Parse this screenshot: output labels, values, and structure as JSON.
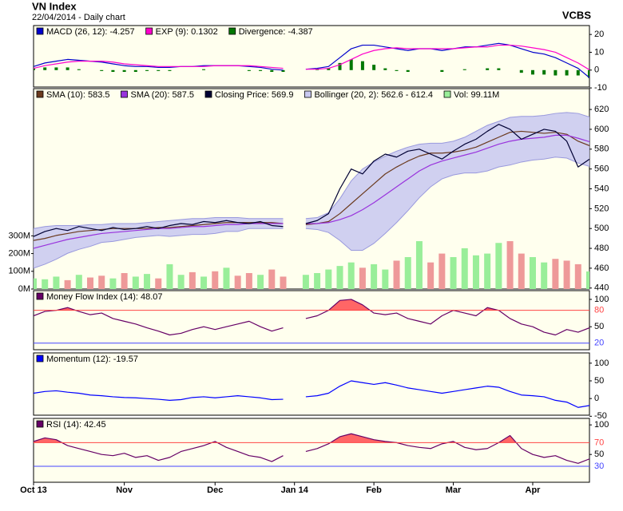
{
  "header": {
    "title": "VN Index",
    "subtitle": "22/04/2014 - Daily chart",
    "source": "VCBS"
  },
  "chart_data": [
    {
      "type": "line",
      "background": "#ffffee",
      "ylim": [
        -9.5,
        25
      ],
      "yticks": [
        -10,
        0,
        10,
        20
      ],
      "series": [
        {
          "name": "MACD (26, 12): -4.257",
          "color": "#0000cc",
          "values": [
            2,
            4,
            5,
            6,
            5.5,
            5,
            4.5,
            3.5,
            2.5,
            2,
            2,
            1.5,
            1.5,
            2,
            2,
            2.5,
            2.5,
            2.5,
            2.5,
            2,
            1.5,
            0.5,
            0,
            null,
            0.5,
            1,
            2,
            7,
            12,
            14,
            14,
            13,
            12,
            11,
            12,
            12,
            11,
            12,
            13,
            13,
            14,
            15,
            14,
            12,
            10,
            9,
            7,
            4,
            1,
            -4.257
          ]
        },
        {
          "name": "EXP (9): 0.1302",
          "color": "#ff00cc",
          "values": [
            1,
            2.5,
            3.5,
            4.5,
            5,
            5,
            5,
            4.5,
            3.5,
            3,
            2.5,
            2,
            2,
            2,
            2,
            2,
            2.5,
            2.5,
            2.5,
            2.5,
            2,
            1.5,
            1,
            null,
            0.5,
            0.5,
            1,
            3,
            6,
            9,
            11,
            12,
            12.5,
            12,
            12,
            12,
            12,
            12,
            12.5,
            13,
            13,
            14,
            14,
            13.5,
            12.5,
            11.5,
            10,
            7,
            4,
            0.1302
          ]
        },
        {
          "name": "Divergence: -4.387",
          "color": "#007700",
          "kind": "bar",
          "values": [
            1,
            1.5,
            1.5,
            1.5,
            0.5,
            0,
            -0.5,
            -1,
            -1,
            -1,
            -0.5,
            -0.5,
            -0.5,
            0,
            0,
            0.5,
            0,
            0,
            0,
            -0.5,
            -0.5,
            -1,
            -1,
            null,
            0,
            0.5,
            1,
            4,
            6,
            5,
            3,
            1,
            -0.5,
            -1,
            0,
            0,
            -1,
            0,
            0.5,
            0,
            1,
            1,
            0,
            -1.5,
            -2.5,
            -2.5,
            -3,
            -3,
            -3,
            -4.387
          ]
        }
      ]
    },
    {
      "type": "line",
      "background": "#ffffee",
      "ylim": [
        439,
        641
      ],
      "yticks": [
        440,
        460,
        480,
        500,
        520,
        540,
        560,
        580,
        600,
        620
      ],
      "y2lim": [
        0,
        1130
      ],
      "y2ticks": [
        {
          "value": 0,
          "label": "0M"
        },
        {
          "value": 100,
          "label": "100M"
        },
        {
          "value": 200,
          "label": "200M"
        },
        {
          "value": 300,
          "label": "300M"
        }
      ],
      "series": [
        {
          "name": "SMA (10): 583.5",
          "color": "#6b3a1e",
          "values": [
            488,
            490,
            493,
            495,
            497,
            498,
            499,
            500,
            500,
            500,
            500,
            501,
            501,
            502,
            503,
            504,
            505,
            506,
            506,
            506,
            506,
            506,
            505,
            null,
            504,
            505,
            507,
            515,
            525,
            535,
            545,
            555,
            562,
            568,
            573,
            576,
            576,
            577,
            579,
            582,
            587,
            592,
            597,
            598,
            597,
            596,
            597,
            595,
            588,
            583.5
          ]
        },
        {
          "name": "SMA (20): 587.5",
          "color": "#9933dd",
          "values": [
            480,
            483,
            486,
            489,
            491,
            493,
            495,
            496,
            497,
            498,
            499,
            500,
            500,
            501,
            502,
            502,
            503,
            504,
            504,
            505,
            505,
            505,
            505,
            null,
            505,
            505,
            506,
            509,
            513,
            519,
            526,
            534,
            542,
            550,
            558,
            564,
            568,
            571,
            574,
            577,
            581,
            585,
            588,
            590,
            591,
            592,
            594,
            594,
            591,
            587.5
          ]
        },
        {
          "name": "Closing Price: 569.9",
          "color": "#000033",
          "kind": "close",
          "values": [
            492,
            497,
            500,
            498,
            502,
            500,
            498,
            501,
            499,
            500,
            502,
            500,
            503,
            505,
            504,
            507,
            506,
            508,
            506,
            505,
            507,
            503,
            502,
            null,
            505,
            508,
            515,
            540,
            560,
            555,
            568,
            575,
            572,
            578,
            580,
            575,
            570,
            578,
            585,
            590,
            598,
            605,
            600,
            590,
            595,
            600,
            598,
            588,
            562,
            569.9
          ]
        },
        {
          "name": "Bollinger (20, 2): 562.6 - 612.4",
          "color": "#9999dd",
          "fill": "#c8c8f0",
          "kind": "band",
          "upper": [
            500,
            502,
            503,
            503,
            503,
            504,
            504,
            505,
            505,
            505,
            506,
            507,
            508,
            509,
            510,
            510,
            511,
            511,
            511,
            510,
            510,
            510,
            510,
            null,
            510,
            511,
            516,
            530,
            548,
            560,
            567,
            573,
            578,
            582,
            585,
            586,
            586,
            588,
            592,
            598,
            604,
            608,
            612,
            613,
            613,
            614,
            616,
            617,
            616,
            612.4
          ],
          "lower": [
            460,
            464,
            469,
            475,
            479,
            482,
            486,
            487,
            489,
            491,
            492,
            493,
            492,
            493,
            494,
            494,
            495,
            497,
            497,
            500,
            500,
            500,
            500,
            null,
            500,
            499,
            496,
            488,
            478,
            478,
            485,
            495,
            506,
            518,
            531,
            542,
            550,
            554,
            556,
            556,
            558,
            562,
            564,
            567,
            569,
            570,
            572,
            571,
            566,
            562.6
          ]
        },
        {
          "name": "Vol: 99.11M",
          "color": "#99ee99",
          "up_color": "#99ee99",
          "down_color": "#ee9999",
          "kind": "bar",
          "axis": "y2",
          "values": [
            60,
            55,
            70,
            50,
            80,
            65,
            75,
            60,
            90,
            70,
            85,
            60,
            140,
            80,
            95,
            70,
            100,
            120,
            75,
            90,
            80,
            110,
            70,
            null,
            80,
            90,
            110,
            130,
            150,
            120,
            140,
            110,
            160,
            180,
            270,
            150,
            200,
            180,
            230,
            190,
            200,
            260,
            270,
            200,
            180,
            150,
            170,
            160,
            140,
            99.11
          ]
        }
      ]
    },
    {
      "type": "line",
      "background": "#ffffee",
      "ylim": [
        8,
        116
      ],
      "yticks": [
        50,
        100
      ],
      "upper_level": 80,
      "upper_color": "#ff4444",
      "upper_fill": "#ff6666",
      "lower_level": 20,
      "lower_color": "#4444ff",
      "series": [
        {
          "name": "Money Flow Index (14): 48.07",
          "color": "#660066",
          "values": [
            70,
            78,
            80,
            85,
            78,
            72,
            75,
            65,
            60,
            55,
            48,
            42,
            35,
            38,
            45,
            50,
            45,
            50,
            55,
            60,
            50,
            42,
            48,
            null,
            65,
            70,
            80,
            98,
            100,
            90,
            75,
            72,
            75,
            65,
            60,
            55,
            70,
            80,
            75,
            70,
            85,
            80,
            65,
            55,
            50,
            40,
            35,
            45,
            40,
            48.07
          ]
        }
      ]
    },
    {
      "type": "line",
      "background": "#ffffee",
      "ylim": [
        -47,
        129
      ],
      "yticks": [
        -50,
        0,
        50,
        100
      ],
      "series": [
        {
          "name": "Momentum (12): -19.57",
          "color": "#0000ff",
          "values": [
            15,
            20,
            22,
            18,
            15,
            10,
            8,
            5,
            3,
            2,
            0,
            -2,
            -5,
            -3,
            3,
            5,
            2,
            5,
            8,
            5,
            2,
            -3,
            -2,
            null,
            5,
            8,
            15,
            35,
            50,
            45,
            40,
            45,
            38,
            30,
            25,
            20,
            15,
            20,
            25,
            30,
            35,
            32,
            20,
            10,
            8,
            5,
            -5,
            -10,
            -25,
            -19.57
          ]
        }
      ]
    },
    {
      "type": "line",
      "background": "#ffffee",
      "ylim": [
        3,
        111
      ],
      "yticks": [
        50,
        100
      ],
      "upper_level": 70,
      "upper_color": "#ff4444",
      "upper_fill": "#ff6666",
      "lower_level": 30,
      "lower_color": "#4444ff",
      "categories": [
        "Oct 13",
        null,
        null,
        null,
        null,
        null,
        null,
        null,
        "Nov",
        null,
        null,
        null,
        null,
        null,
        null,
        null,
        "Dec",
        null,
        null,
        null,
        null,
        null,
        null,
        "Jan 14",
        null,
        null,
        null,
        null,
        null,
        null,
        "Feb",
        null,
        null,
        null,
        null,
        null,
        null,
        "Mar",
        null,
        null,
        null,
        null,
        null,
        null,
        "Apr",
        null,
        null,
        null,
        null,
        null
      ],
      "series": [
        {
          "name": "RSI (14): 42.45",
          "color": "#660066",
          "values": [
            72,
            78,
            75,
            65,
            60,
            55,
            50,
            48,
            52,
            45,
            48,
            40,
            45,
            55,
            60,
            65,
            72,
            62,
            55,
            48,
            45,
            38,
            48,
            null,
            55,
            60,
            68,
            80,
            85,
            80,
            75,
            72,
            70,
            65,
            62,
            60,
            68,
            72,
            62,
            58,
            60,
            70,
            82,
            60,
            50,
            45,
            48,
            40,
            35,
            42.45
          ]
        }
      ]
    }
  ]
}
